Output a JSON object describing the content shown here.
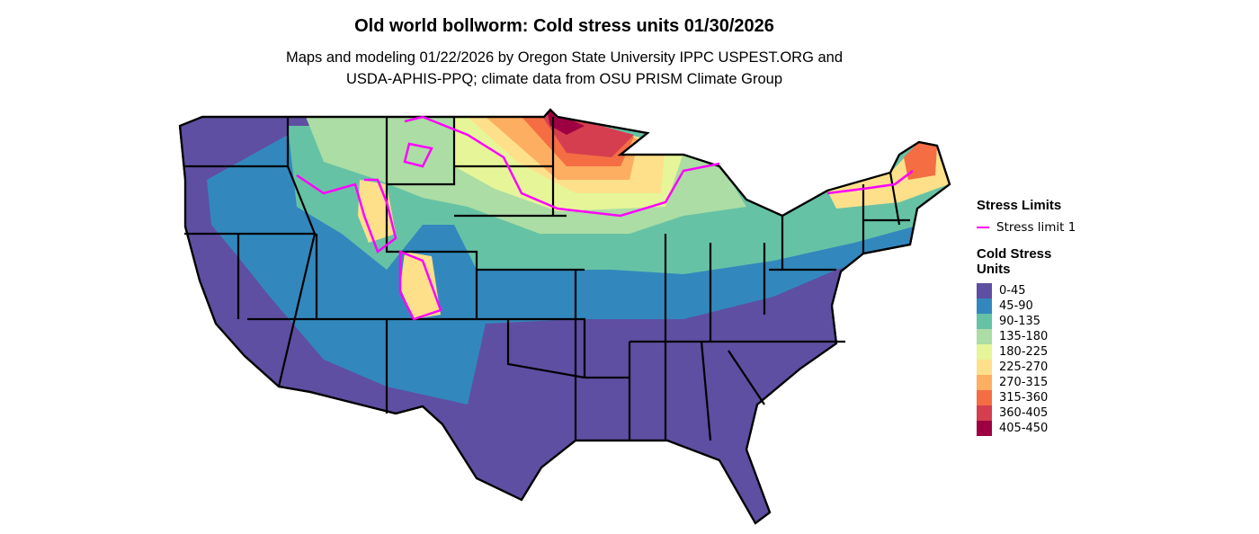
{
  "title": "Old world bollworm: Cold stress units 01/30/2026",
  "subtitle_lines": [
    "Maps and modeling 01/22/2026 by Oregon State University IPPC USPEST.ORG and",
    "USDA-APHIS-PPQ; climate data from OSU PRISM Climate Group"
  ],
  "legend": {
    "stress_title": "Stress Limits",
    "stress_item": "Stress limit 1",
    "stress_color": "#FF00FF",
    "units_title_lines": [
      "Cold Stress",
      "Units"
    ],
    "bins": [
      {
        "label": "0-45",
        "color": "#5E4FA2"
      },
      {
        "label": "45-90",
        "color": "#3288BD"
      },
      {
        "label": "90-135",
        "color": "#66C2A5"
      },
      {
        "label": "135-180",
        "color": "#ABDDA4"
      },
      {
        "label": "180-225",
        "color": "#E6F598"
      },
      {
        "label": "225-270",
        "color": "#FEE08B"
      },
      {
        "label": "270-315",
        "color": "#FDAE61"
      },
      {
        "label": "315-360",
        "color": "#F46D43"
      },
      {
        "label": "360-405",
        "color": "#D53E4F"
      },
      {
        "label": "405-450",
        "color": "#9E0142"
      }
    ]
  }
}
